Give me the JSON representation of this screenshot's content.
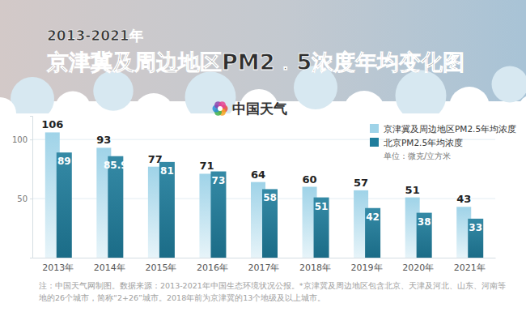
{
  "chart_data": {
    "type": "bar",
    "subtitle": "2013-2021年",
    "title": "京津冀及周边地区PM2．5浓度年均变化图",
    "logo": "中国天气",
    "unit": "单位：微克/立方米",
    "note": [
      "注：中国天气网制图。数据来源：2013-2021年中国生态环境状况公报。*京津冀及周边地区包含北京、天津及河北、山东、河南等",
      "地的26个城市，简称“2+26”城市。2018年前为京津冀的13个地级及以上城市。"
    ],
    "categories": [
      "2013年",
      "2014年",
      "2015年",
      "2016年",
      "2017年",
      "2018年",
      "2019年",
      "2020年",
      "2021年"
    ],
    "series": [
      {
        "name": "京津冀及周边地区PM2.5年均浓度",
        "color": "#9fd3e8",
        "values": [
          106,
          93,
          77,
          71,
          64,
          60,
          57,
          51,
          43
        ]
      },
      {
        "name": "北京PM2.5年均浓度",
        "color": "#1f7d9c",
        "values": [
          89,
          85.9,
          81,
          73,
          58,
          51,
          42,
          38,
          33
        ]
      }
    ],
    "ylim": [
      0,
      120
    ],
    "yticks": [
      50,
      100
    ],
    "grid": true,
    "legend": "top-right",
    "data_labels": true
  }
}
